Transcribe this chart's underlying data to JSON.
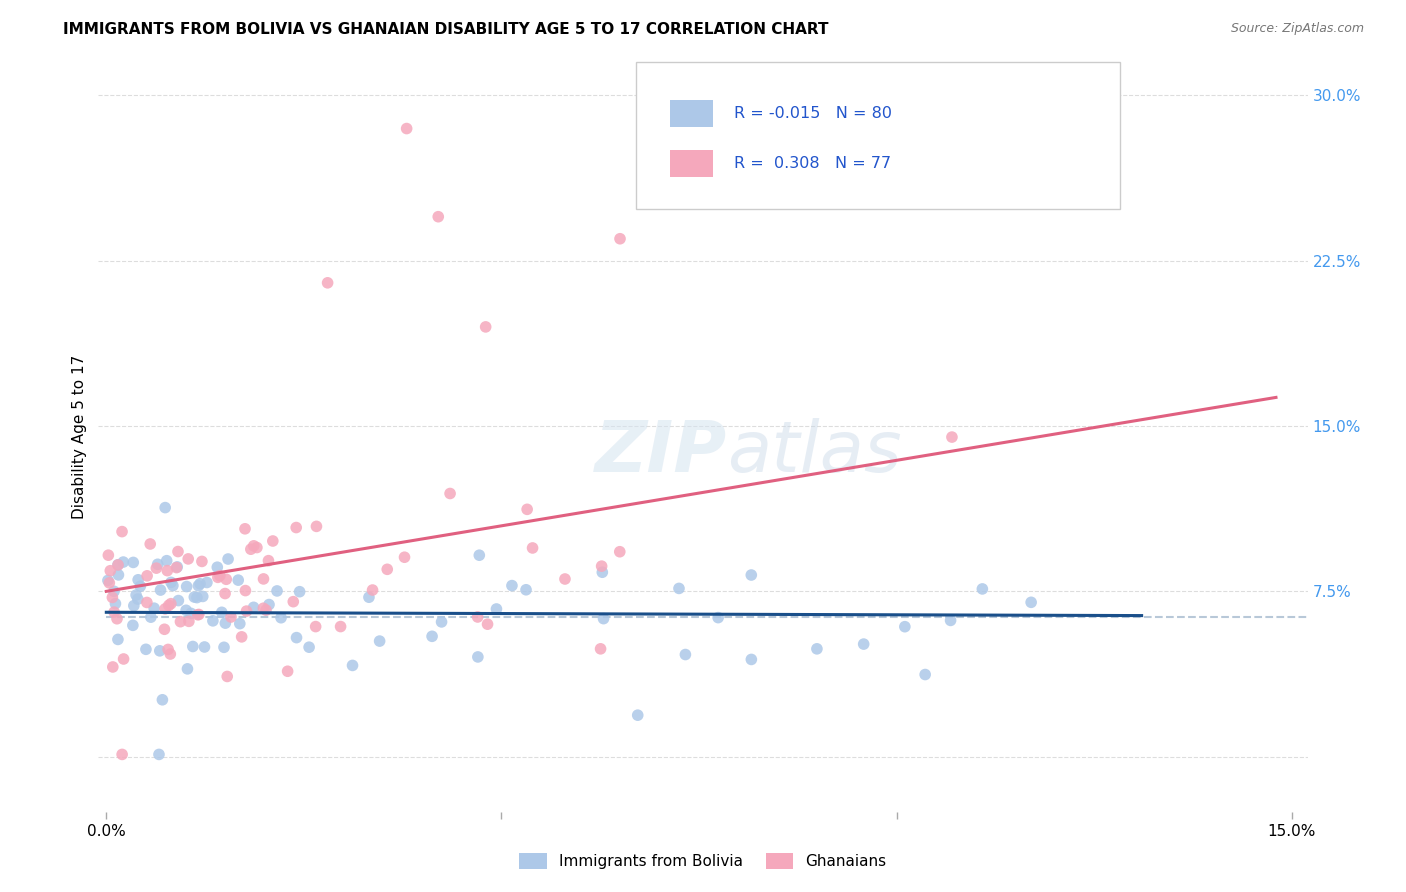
{
  "title": "IMMIGRANTS FROM BOLIVIA VS GHANAIAN DISABILITY AGE 5 TO 17 CORRELATION CHART",
  "source": "Source: ZipAtlas.com",
  "ylabel": "Disability Age 5 to 17",
  "xlim": [
    -0.001,
    0.152
  ],
  "ylim": [
    -0.025,
    0.315
  ],
  "xtick_positions": [
    0.0,
    0.05,
    0.1,
    0.15
  ],
  "xtick_labels": [
    "0.0%",
    "",
    "",
    "15.0%"
  ],
  "ytick_positions": [
    0.0,
    0.075,
    0.15,
    0.225,
    0.3
  ],
  "ytick_labels": [
    "",
    "7.5%",
    "15.0%",
    "22.5%",
    "30.0%"
  ],
  "legend_R1": "-0.015",
  "legend_N1": "80",
  "legend_R2": "0.308",
  "legend_N2": "77",
  "color_bolivia": "#adc8e8",
  "color_ghana": "#f5a8bc",
  "color_line_bolivia": "#1a4f8a",
  "color_line_ghana": "#e06080",
  "color_dashed": "#b8c8d8",
  "color_grid": "#dddddd",
  "legend_labels": [
    "Immigrants from Bolivia",
    "Ghanaians"
  ],
  "bolivia_line_x": [
    0.0,
    0.131
  ],
  "bolivia_line_y": [
    0.0655,
    0.064
  ],
  "ghana_line_x": [
    0.0,
    0.148
  ],
  "ghana_line_y": [
    0.075,
    0.163
  ],
  "dashed_line_y": 0.0635,
  "dashed_line_x_start": 0.0,
  "dashed_line_x_end": 0.152
}
